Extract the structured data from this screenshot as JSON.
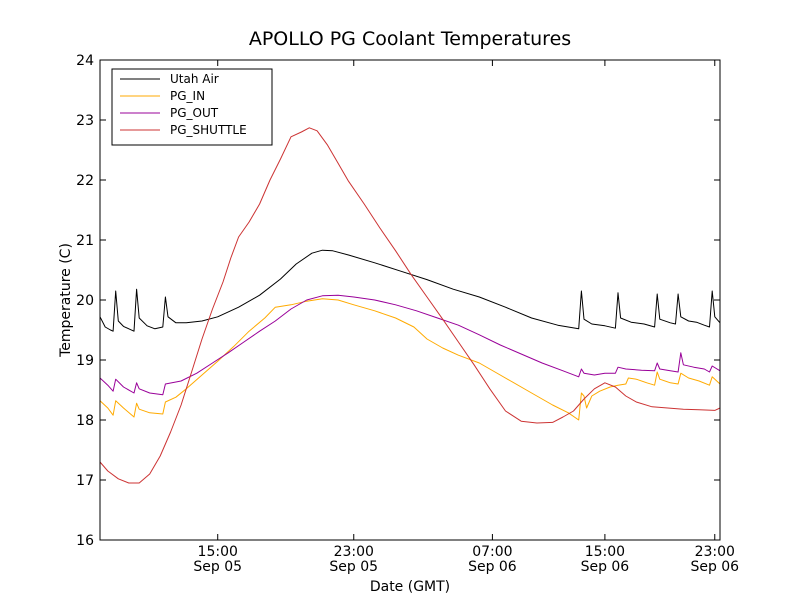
{
  "chart_data": {
    "type": "line",
    "title": "APOLLO PG Coolant Temperatures",
    "xlabel": "Date (GMT)",
    "ylabel": "Temperature (C)",
    "ylim": [
      16,
      24
    ],
    "yticks": [
      16,
      17,
      18,
      19,
      20,
      21,
      22,
      23,
      24
    ],
    "xlim_hours": [
      10.5,
      34.2
    ],
    "xticks": [
      {
        "hour": 15,
        "time": "15:00",
        "date": "Sep 05"
      },
      {
        "hour": 20.2,
        "time": "23:00",
        "date": "Sep 05"
      },
      {
        "hour": 25.5,
        "time": "07:00",
        "date": "Sep 06"
      },
      {
        "hour": 29.8,
        "time": "15:00",
        "date": "Sep 06"
      },
      {
        "hour": 34.0,
        "time": "23:00",
        "date": "Sep 06"
      }
    ],
    "legend": {
      "position": "top-left"
    },
    "series": [
      {
        "name": "Utah Air",
        "color": "#000000",
        "points": [
          [
            10.5,
            19.72
          ],
          [
            10.7,
            19.55
          ],
          [
            10.9,
            19.5
          ],
          [
            11.0,
            19.48
          ],
          [
            11.1,
            20.15
          ],
          [
            11.2,
            19.65
          ],
          [
            11.4,
            19.56
          ],
          [
            11.6,
            19.52
          ],
          [
            11.8,
            19.48
          ],
          [
            11.9,
            20.18
          ],
          [
            12.0,
            19.7
          ],
          [
            12.3,
            19.57
          ],
          [
            12.6,
            19.52
          ],
          [
            12.9,
            19.55
          ],
          [
            13.0,
            20.05
          ],
          [
            13.1,
            19.72
          ],
          [
            13.4,
            19.62
          ],
          [
            13.8,
            19.62
          ],
          [
            14.4,
            19.65
          ],
          [
            15.0,
            19.72
          ],
          [
            15.8,
            19.88
          ],
          [
            16.6,
            20.08
          ],
          [
            17.4,
            20.35
          ],
          [
            18.0,
            20.6
          ],
          [
            18.6,
            20.78
          ],
          [
            19.0,
            20.83
          ],
          [
            19.4,
            20.82
          ],
          [
            20.0,
            20.75
          ],
          [
            21.0,
            20.62
          ],
          [
            22.0,
            20.48
          ],
          [
            23.0,
            20.34
          ],
          [
            24.0,
            20.18
          ],
          [
            25.0,
            20.05
          ],
          [
            26.0,
            19.88
          ],
          [
            27.0,
            19.7
          ],
          [
            28.0,
            19.58
          ],
          [
            28.8,
            19.52
          ],
          [
            28.9,
            20.15
          ],
          [
            29.0,
            19.68
          ],
          [
            29.3,
            19.6
          ],
          [
            29.8,
            19.57
          ],
          [
            30.2,
            19.53
          ],
          [
            30.3,
            20.12
          ],
          [
            30.4,
            19.7
          ],
          [
            30.8,
            19.63
          ],
          [
            31.3,
            19.6
          ],
          [
            31.7,
            19.55
          ],
          [
            31.8,
            20.1
          ],
          [
            31.9,
            19.68
          ],
          [
            32.3,
            19.62
          ],
          [
            32.5,
            19.6
          ],
          [
            32.6,
            20.1
          ],
          [
            32.7,
            19.72
          ],
          [
            33.0,
            19.65
          ],
          [
            33.3,
            19.63
          ],
          [
            33.6,
            19.58
          ],
          [
            33.8,
            19.55
          ],
          [
            33.9,
            20.15
          ],
          [
            34.0,
            19.72
          ],
          [
            34.2,
            19.62
          ]
        ]
      },
      {
        "name": "PG_IN",
        "color": "#ffaa00",
        "points": [
          [
            10.5,
            18.32
          ],
          [
            10.8,
            18.2
          ],
          [
            11.0,
            18.08
          ],
          [
            11.1,
            18.32
          ],
          [
            11.4,
            18.2
          ],
          [
            11.8,
            18.05
          ],
          [
            11.9,
            18.28
          ],
          [
            12.0,
            18.18
          ],
          [
            12.4,
            18.12
          ],
          [
            12.9,
            18.1
          ],
          [
            13.0,
            18.3
          ],
          [
            13.4,
            18.38
          ],
          [
            13.8,
            18.52
          ],
          [
            14.4,
            18.75
          ],
          [
            15.0,
            18.98
          ],
          [
            15.6,
            19.22
          ],
          [
            16.2,
            19.48
          ],
          [
            16.8,
            19.7
          ],
          [
            17.2,
            19.88
          ],
          [
            17.8,
            19.92
          ],
          [
            18.4,
            19.98
          ],
          [
            19.0,
            20.02
          ],
          [
            19.6,
            20.0
          ],
          [
            20.2,
            19.92
          ],
          [
            21.0,
            19.82
          ],
          [
            21.8,
            19.7
          ],
          [
            22.5,
            19.55
          ],
          [
            23.0,
            19.35
          ],
          [
            23.6,
            19.2
          ],
          [
            24.2,
            19.08
          ],
          [
            25.0,
            18.95
          ],
          [
            25.6,
            18.8
          ],
          [
            26.2,
            18.65
          ],
          [
            27.0,
            18.45
          ],
          [
            27.8,
            18.25
          ],
          [
            28.4,
            18.12
          ],
          [
            28.8,
            18.0
          ],
          [
            28.9,
            18.45
          ],
          [
            29.0,
            18.4
          ],
          [
            29.1,
            18.2
          ],
          [
            29.3,
            18.4
          ],
          [
            29.6,
            18.48
          ],
          [
            30.0,
            18.55
          ],
          [
            30.3,
            18.58
          ],
          [
            30.6,
            18.6
          ],
          [
            30.7,
            18.7
          ],
          [
            31.0,
            18.68
          ],
          [
            31.4,
            18.62
          ],
          [
            31.7,
            18.58
          ],
          [
            31.8,
            18.8
          ],
          [
            31.9,
            18.68
          ],
          [
            32.3,
            18.62
          ],
          [
            32.6,
            18.6
          ],
          [
            32.7,
            18.78
          ],
          [
            33.0,
            18.7
          ],
          [
            33.4,
            18.65
          ],
          [
            33.8,
            18.58
          ],
          [
            33.9,
            18.72
          ],
          [
            34.2,
            18.6
          ]
        ]
      },
      {
        "name": "PG_OUT",
        "color": "#990099",
        "points": [
          [
            10.5,
            18.7
          ],
          [
            10.8,
            18.58
          ],
          [
            11.0,
            18.48
          ],
          [
            11.1,
            18.68
          ],
          [
            11.4,
            18.55
          ],
          [
            11.8,
            18.45
          ],
          [
            11.9,
            18.62
          ],
          [
            12.0,
            18.52
          ],
          [
            12.4,
            18.45
          ],
          [
            12.9,
            18.42
          ],
          [
            13.0,
            18.6
          ],
          [
            13.6,
            18.65
          ],
          [
            14.2,
            18.78
          ],
          [
            14.8,
            18.95
          ],
          [
            15.4,
            19.12
          ],
          [
            16.0,
            19.3
          ],
          [
            16.6,
            19.48
          ],
          [
            17.2,
            19.65
          ],
          [
            17.8,
            19.85
          ],
          [
            18.4,
            20.0
          ],
          [
            19.0,
            20.07
          ],
          [
            19.6,
            20.08
          ],
          [
            20.2,
            20.05
          ],
          [
            21.0,
            20.0
          ],
          [
            21.8,
            19.92
          ],
          [
            22.6,
            19.82
          ],
          [
            23.4,
            19.7
          ],
          [
            24.2,
            19.58
          ],
          [
            25.0,
            19.42
          ],
          [
            25.8,
            19.25
          ],
          [
            26.6,
            19.1
          ],
          [
            27.4,
            18.95
          ],
          [
            28.2,
            18.82
          ],
          [
            28.8,
            18.72
          ],
          [
            28.9,
            18.85
          ],
          [
            29.0,
            18.78
          ],
          [
            29.4,
            18.75
          ],
          [
            29.8,
            18.78
          ],
          [
            30.2,
            18.78
          ],
          [
            30.3,
            18.88
          ],
          [
            30.6,
            18.85
          ],
          [
            31.2,
            18.83
          ],
          [
            31.7,
            18.82
          ],
          [
            31.8,
            18.95
          ],
          [
            31.9,
            18.85
          ],
          [
            32.3,
            18.82
          ],
          [
            32.6,
            18.8
          ],
          [
            32.7,
            19.12
          ],
          [
            32.8,
            18.92
          ],
          [
            33.2,
            18.88
          ],
          [
            33.6,
            18.85
          ],
          [
            33.8,
            18.8
          ],
          [
            33.9,
            18.9
          ],
          [
            34.2,
            18.82
          ]
        ]
      },
      {
        "name": "PG_SHUTTLE",
        "color": "#cc3333",
        "points": [
          [
            10.5,
            17.3
          ],
          [
            10.8,
            17.15
          ],
          [
            11.2,
            17.02
          ],
          [
            11.6,
            16.95
          ],
          [
            12.0,
            16.95
          ],
          [
            12.4,
            17.1
          ],
          [
            12.8,
            17.4
          ],
          [
            13.2,
            17.8
          ],
          [
            13.6,
            18.25
          ],
          [
            14.0,
            18.8
          ],
          [
            14.4,
            19.35
          ],
          [
            14.8,
            19.85
          ],
          [
            15.2,
            20.3
          ],
          [
            15.5,
            20.7
          ],
          [
            15.8,
            21.05
          ],
          [
            16.2,
            21.3
          ],
          [
            16.6,
            21.6
          ],
          [
            17.0,
            22.0
          ],
          [
            17.4,
            22.35
          ],
          [
            17.8,
            22.72
          ],
          [
            18.2,
            22.8
          ],
          [
            18.5,
            22.87
          ],
          [
            18.8,
            22.82
          ],
          [
            19.2,
            22.58
          ],
          [
            19.6,
            22.28
          ],
          [
            20.0,
            21.98
          ],
          [
            20.6,
            21.6
          ],
          [
            21.2,
            21.2
          ],
          [
            21.8,
            20.82
          ],
          [
            22.4,
            20.42
          ],
          [
            23.0,
            20.05
          ],
          [
            23.6,
            19.68
          ],
          [
            24.2,
            19.3
          ],
          [
            24.8,
            18.92
          ],
          [
            25.4,
            18.52
          ],
          [
            26.0,
            18.15
          ],
          [
            26.6,
            17.98
          ],
          [
            27.2,
            17.95
          ],
          [
            27.8,
            17.96
          ],
          [
            28.2,
            18.05
          ],
          [
            28.6,
            18.15
          ],
          [
            29.0,
            18.35
          ],
          [
            29.4,
            18.52
          ],
          [
            29.8,
            18.62
          ],
          [
            30.2,
            18.55
          ],
          [
            30.6,
            18.4
          ],
          [
            31.0,
            18.3
          ],
          [
            31.6,
            18.22
          ],
          [
            32.2,
            18.2
          ],
          [
            32.8,
            18.18
          ],
          [
            33.4,
            18.17
          ],
          [
            34.0,
            18.16
          ],
          [
            34.2,
            18.2
          ]
        ]
      }
    ]
  }
}
